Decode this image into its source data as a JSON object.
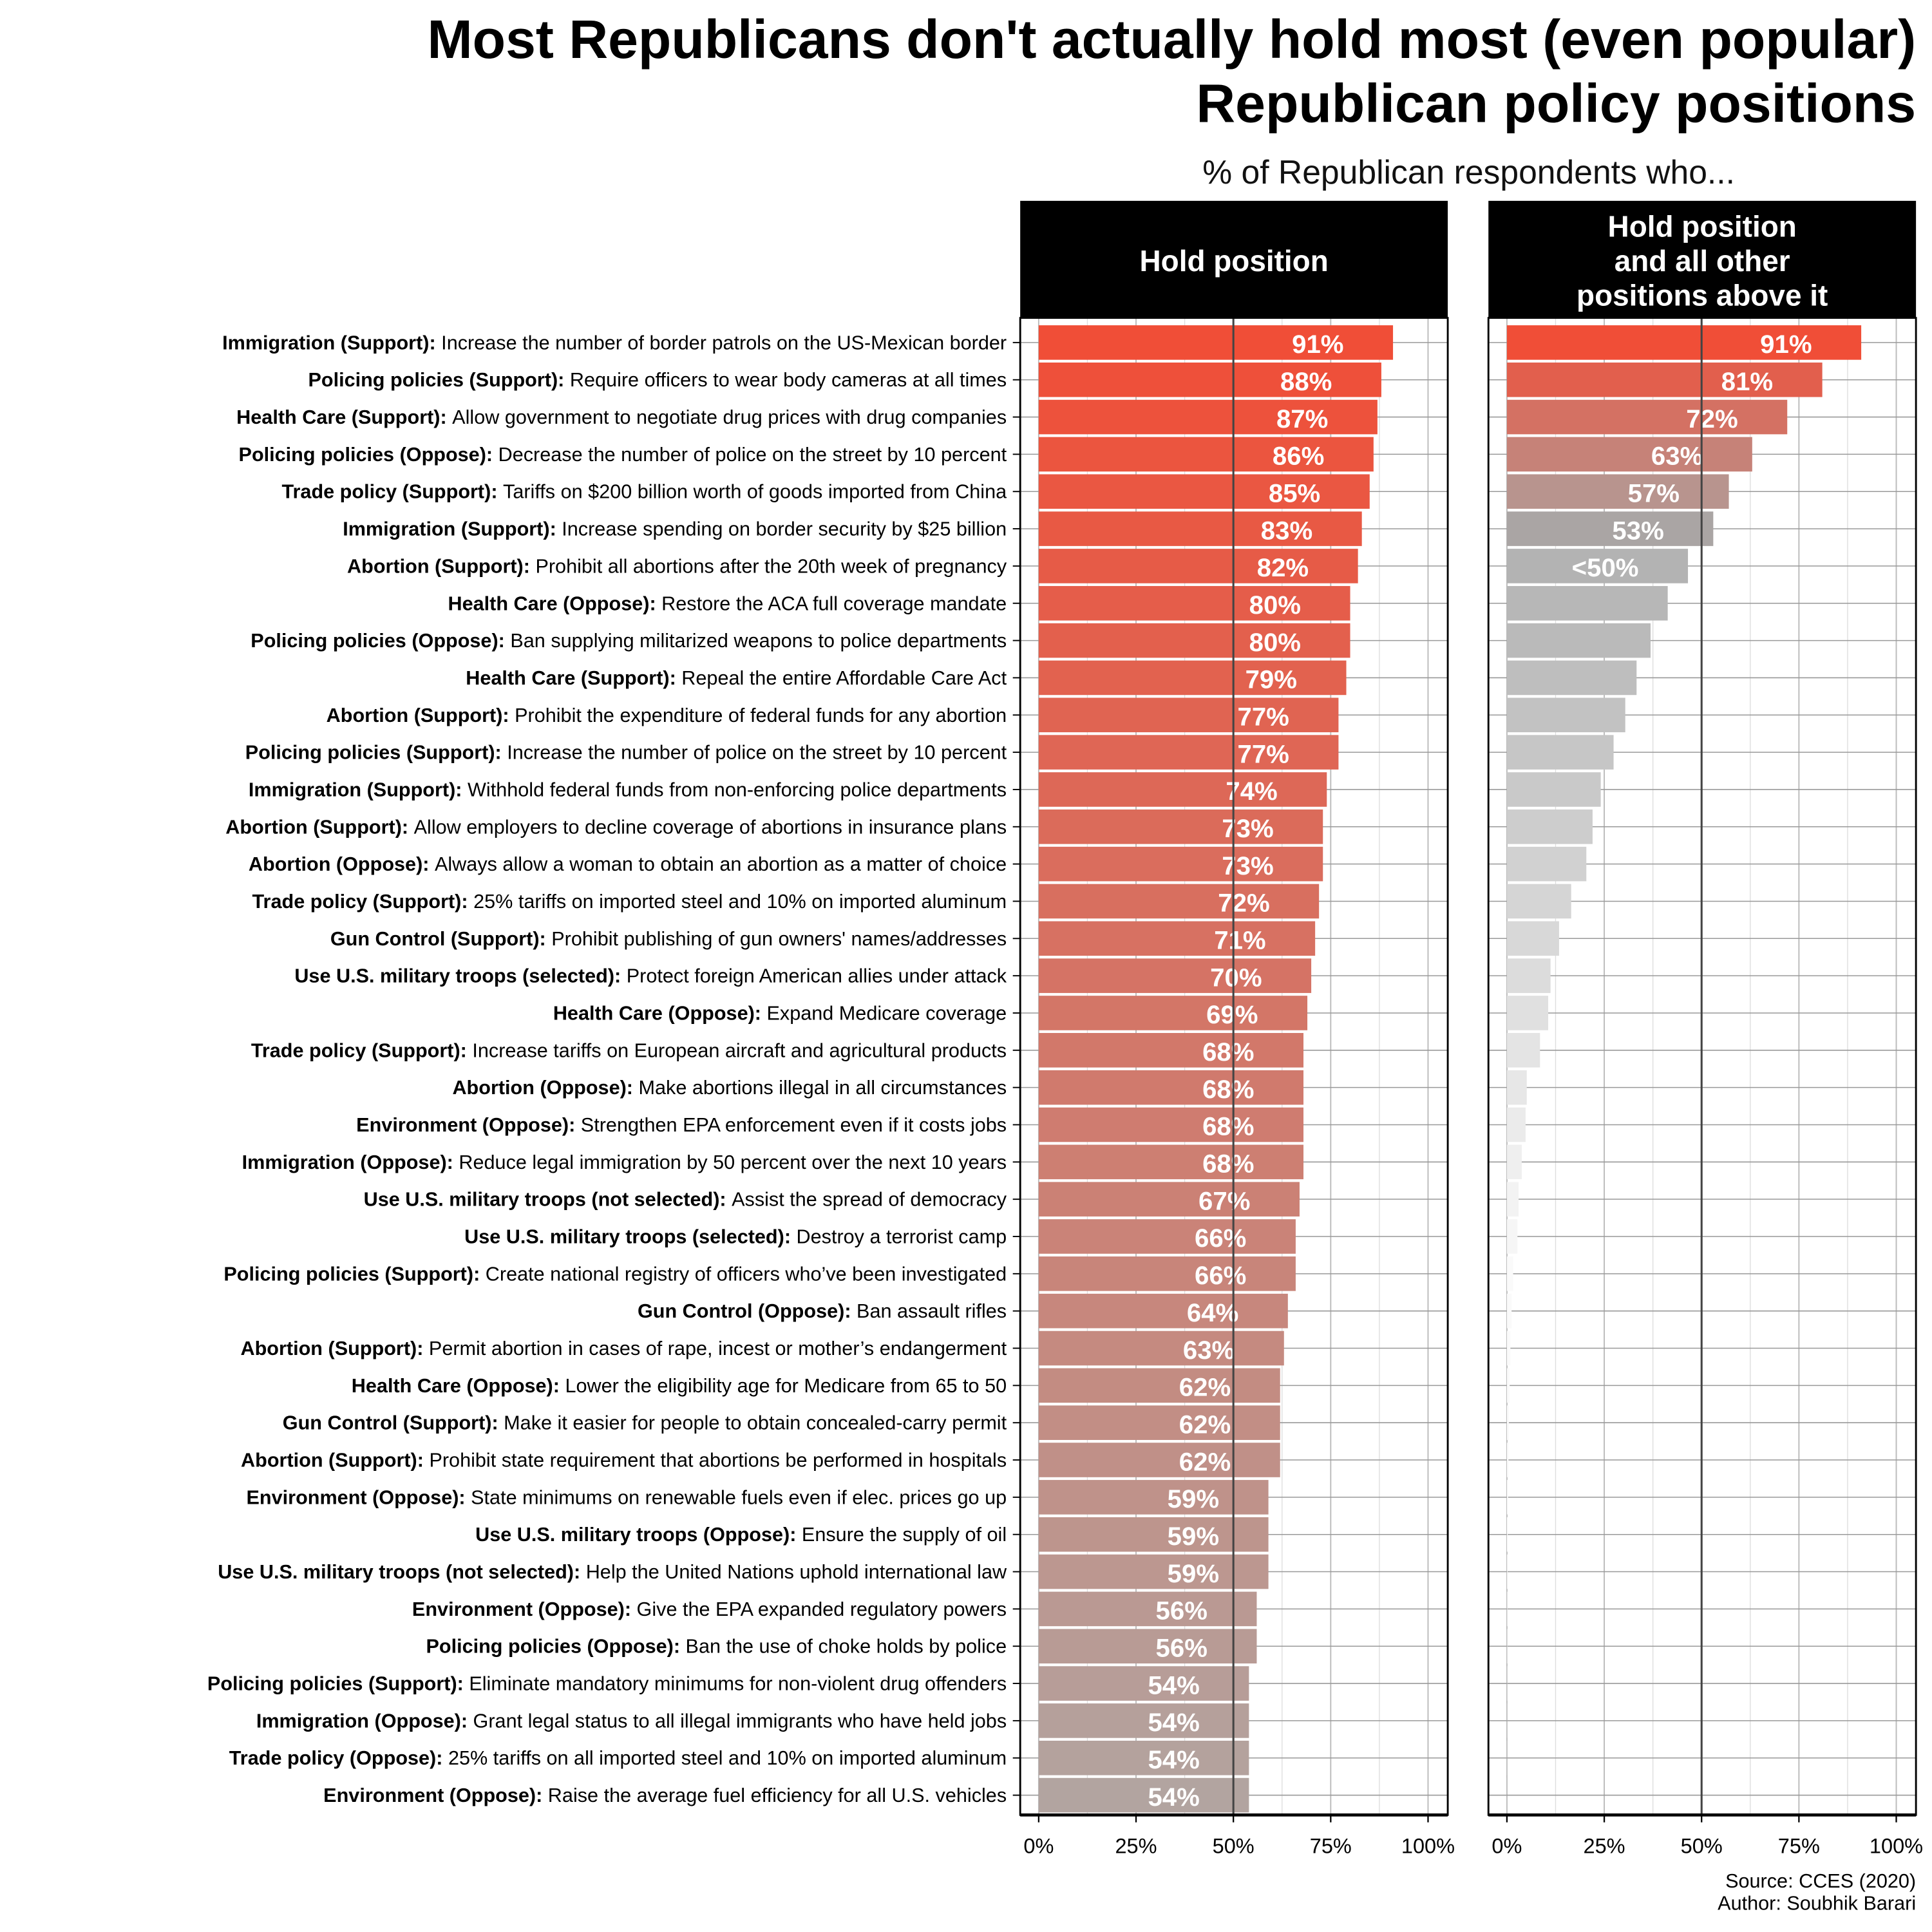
{
  "chart_data": {
    "type": "bar",
    "orientation": "horizontal",
    "title": [
      "Most Republicans don't actually hold most (even popular)",
      "Republican policy positions"
    ],
    "subtitle": "% of Republican respondents who...",
    "panels": [
      {
        "header": [
          "Hold position"
        ]
      },
      {
        "header": [
          "Hold position",
          "and all other",
          "positions above it"
        ]
      }
    ],
    "xlim": [
      0,
      100
    ],
    "x_ticks": [
      "0%",
      "25%",
      "50%",
      "75%",
      "100%"
    ],
    "reference_line": 50,
    "caption": [
      "Source: CCES (2020)",
      "Author: Soubhik Barari"
    ],
    "rows": [
      {
        "cat": "Immigration (Support):",
        "text": "Increase the number of border patrols on the US-Mexican border",
        "hold": 91,
        "cum": 91,
        "hold_label": "91%",
        "cum_label": "91%"
      },
      {
        "cat": "Policing policies (Support):",
        "text": "Require officers to wear body cameras at all times",
        "hold": 88,
        "cum": 81,
        "hold_label": "88%",
        "cum_label": "81%"
      },
      {
        "cat": "Health Care (Support):",
        "text": "Allow government to negotiate drug prices with drug companies",
        "hold": 87,
        "cum": 72,
        "hold_label": "87%",
        "cum_label": "72%"
      },
      {
        "cat": "Policing policies (Oppose):",
        "text": "Decrease the number of police on the street by 10 percent",
        "hold": 86,
        "cum": 63,
        "hold_label": "86%",
        "cum_label": "63%"
      },
      {
        "cat": "Trade policy (Support):",
        "text": "Tariffs on $200 billion worth of goods imported from China",
        "hold": 85,
        "cum": 57,
        "hold_label": "85%",
        "cum_label": "57%"
      },
      {
        "cat": "Immigration (Support):",
        "text": "Increase spending on border security by $25 billion",
        "hold": 83,
        "cum": 53,
        "hold_label": "83%",
        "cum_label": "53%"
      },
      {
        "cat": "Abortion (Support):",
        "text": "Prohibit all abortions after the 20th week of pregnancy",
        "hold": 82,
        "cum": 46.5,
        "hold_label": "82%",
        "cum_label": "<50%"
      },
      {
        "cat": "Health Care (Oppose):",
        "text": "Restore the ACA full coverage mandate",
        "hold": 80,
        "cum": 41.3,
        "hold_label": "80%",
        "cum_label": ""
      },
      {
        "cat": "Policing policies (Oppose):",
        "text": "Ban supplying militarized weapons to police departments",
        "hold": 80,
        "cum": 36.9,
        "hold_label": "80%",
        "cum_label": ""
      },
      {
        "cat": "Health Care (Support):",
        "text": "Repeal the entire Affordable Care Act",
        "hold": 79,
        "cum": 33.3,
        "hold_label": "79%",
        "cum_label": ""
      },
      {
        "cat": "Abortion (Support):",
        "text": "Prohibit the expenditure of federal funds for any abortion",
        "hold": 77,
        "cum": 30.4,
        "hold_label": "77%",
        "cum_label": ""
      },
      {
        "cat": "Policing policies (Support):",
        "text": "Increase the number of police on the street by 10 percent",
        "hold": 77,
        "cum": 27.4,
        "hold_label": "77%",
        "cum_label": ""
      },
      {
        "cat": "Immigration (Support):",
        "text": "Withhold federal funds from non-enforcing police departments",
        "hold": 74,
        "cum": 24.1,
        "hold_label": "74%",
        "cum_label": ""
      },
      {
        "cat": "Abortion (Support):",
        "text": "Allow employers to decline coverage of abortions in insurance plans",
        "hold": 73,
        "cum": 22.0,
        "hold_label": "73%",
        "cum_label": ""
      },
      {
        "cat": "Abortion (Oppose):",
        "text": "Always allow a woman to obtain an abortion as a matter of choice",
        "hold": 73,
        "cum": 20.4,
        "hold_label": "73%",
        "cum_label": ""
      },
      {
        "cat": "Trade policy (Support):",
        "text": "25% tariffs on imported steel and 10% on imported aluminum",
        "hold": 72,
        "cum": 16.5,
        "hold_label": "72%",
        "cum_label": ""
      },
      {
        "cat": "Gun Control (Support):",
        "text": "Prohibit publishing of gun owners' names/addresses",
        "hold": 71,
        "cum": 13.4,
        "hold_label": "71%",
        "cum_label": ""
      },
      {
        "cat": "Use U.S. military troops (selected):",
        "text": "Protect foreign American allies under attack",
        "hold": 70,
        "cum": 11.2,
        "hold_label": "70%",
        "cum_label": ""
      },
      {
        "cat": "Health Care (Oppose):",
        "text": "Expand Medicare coverage",
        "hold": 69,
        "cum": 10.6,
        "hold_label": "69%",
        "cum_label": ""
      },
      {
        "cat": "Trade policy (Support):",
        "text": "Increase tariffs on European aircraft and agricultural products",
        "hold": 68,
        "cum": 8.5,
        "hold_label": "68%",
        "cum_label": ""
      },
      {
        "cat": "Abortion (Oppose):",
        "text": "Make abortions illegal in all circumstances",
        "hold": 68,
        "cum": 5.1,
        "hold_label": "68%",
        "cum_label": ""
      },
      {
        "cat": "Environment (Oppose):",
        "text": "Strengthen EPA enforcement even if it costs jobs",
        "hold": 68,
        "cum": 4.8,
        "hold_label": "68%",
        "cum_label": ""
      },
      {
        "cat": "Immigration (Oppose):",
        "text": "Reduce legal immigration by 50 percent over the next 10 years",
        "hold": 68,
        "cum": 3.8,
        "hold_label": "68%",
        "cum_label": ""
      },
      {
        "cat": "Use U.S. military troops (not selected):",
        "text": "Assist the spread of democracy",
        "hold": 67,
        "cum": 3.0,
        "hold_label": "67%",
        "cum_label": ""
      },
      {
        "cat": "Use U.S. military troops (selected):",
        "text": "Destroy a terrorist camp",
        "hold": 66,
        "cum": 2.7,
        "hold_label": "66%",
        "cum_label": ""
      },
      {
        "cat": "Policing policies (Support):",
        "text": "Create national registry of officers who’ve been investigated",
        "hold": 66,
        "cum": 1.6,
        "hold_label": "66%",
        "cum_label": ""
      },
      {
        "cat": "Gun Control (Oppose):",
        "text": "Ban assault rifles",
        "hold": 64,
        "cum": 1.2,
        "hold_label": "64%",
        "cum_label": ""
      },
      {
        "cat": "Abortion (Support):",
        "text": "Permit abortion in cases of rape, incest or mother’s endangerment",
        "hold": 63,
        "cum": 0.9,
        "hold_label": "63%",
        "cum_label": ""
      },
      {
        "cat": "Health Care (Oppose):",
        "text": "Lower the eligibility age for Medicare from 65 to 50",
        "hold": 62,
        "cum": 0.7,
        "hold_label": "62%",
        "cum_label": ""
      },
      {
        "cat": "Gun Control (Support):",
        "text": "Make it easier for people to obtain concealed-carry permit",
        "hold": 62,
        "cum": 0.5,
        "hold_label": "62%",
        "cum_label": ""
      },
      {
        "cat": "Abortion (Support):",
        "text": "Prohibit state requirement that abortions be performed in hospitals",
        "hold": 62,
        "cum": 0.4,
        "hold_label": "62%",
        "cum_label": ""
      },
      {
        "cat": "Environment (Oppose):",
        "text": "State minimums on renewable fuels even if elec. prices go up",
        "hold": 59,
        "cum": 0.3,
        "hold_label": "59%",
        "cum_label": ""
      },
      {
        "cat": "Use U.S. military troops (Oppose):",
        "text": "Ensure the supply of oil",
        "hold": 59,
        "cum": 0.2,
        "hold_label": "59%",
        "cum_label": ""
      },
      {
        "cat": "Use U.S. military troops (not selected):",
        "text": "Help the United Nations uphold international law",
        "hold": 59,
        "cum": 0.15,
        "hold_label": "59%",
        "cum_label": ""
      },
      {
        "cat": "Environment (Oppose):",
        "text": "Give the EPA expanded regulatory powers",
        "hold": 56,
        "cum": 0.1,
        "hold_label": "56%",
        "cum_label": ""
      },
      {
        "cat": "Policing policies (Oppose):",
        "text": "Ban the use of choke holds by police",
        "hold": 56,
        "cum": 0.08,
        "hold_label": "56%",
        "cum_label": ""
      },
      {
        "cat": "Policing policies (Support):",
        "text": "Eliminate mandatory minimums for non-violent drug offenders",
        "hold": 54,
        "cum": 0.05,
        "hold_label": "54%",
        "cum_label": ""
      },
      {
        "cat": "Immigration (Oppose):",
        "text": "Grant legal status to all illegal immigrants who have held jobs",
        "hold": 54,
        "cum": 0.03,
        "hold_label": "54%",
        "cum_label": ""
      },
      {
        "cat": "Trade policy (Oppose):",
        "text": "25% tariffs on all imported steel and 10% on imported aluminum",
        "hold": 54,
        "cum": 0.02,
        "hold_label": "54%",
        "cum_label": ""
      },
      {
        "cat": "Environment (Oppose):",
        "text": "Raise the average fuel efficiency for all U.S. vehicles",
        "hold": 54,
        "cum": 0.01,
        "hold_label": "54%",
        "cum_label": ""
      }
    ],
    "colors": {
      "high": "#f04e37",
      "low": "#b2a4a0",
      "cum_gray_dark": "#b3b3b3",
      "cum_gray_light": "#fafafa",
      "header_bg": "#000000"
    }
  }
}
